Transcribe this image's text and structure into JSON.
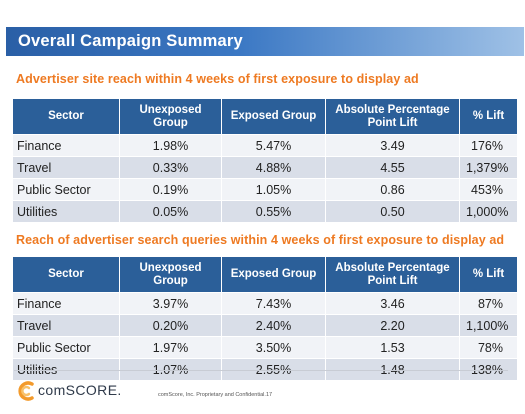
{
  "title": "Overall Campaign Summary",
  "table1": {
    "heading": "Advertiser site reach within 4 weeks of first exposure to display ad",
    "headers": {
      "sector": "Sector",
      "unexposed": "Unexposed Group",
      "exposed": "Exposed Group",
      "absolute": "Absolute Percentage Point Lift",
      "lift": "% Lift"
    },
    "rows": [
      {
        "sector": "Finance",
        "unexposed": "1.98%",
        "exposed": "5.47%",
        "absolute": "3.49",
        "lift": "176%"
      },
      {
        "sector": "Travel",
        "unexposed": "0.33%",
        "exposed": "4.88%",
        "absolute": "4.55",
        "lift": "1,379%"
      },
      {
        "sector": "Public Sector",
        "unexposed": "0.19%",
        "exposed": "1.05%",
        "absolute": "0.86",
        "lift": "453%"
      },
      {
        "sector": "Utilities",
        "unexposed": "0.05%",
        "exposed": "0.55%",
        "absolute": "0.50",
        "lift": "1,000%"
      }
    ]
  },
  "table2": {
    "heading": "Reach of advertiser search queries within 4 weeks of first exposure to display ad",
    "headers": {
      "sector": "Sector",
      "unexposed": "Unexposed Group",
      "exposed": "Exposed Group",
      "absolute": "Absolute Percentage Point Lift",
      "lift": "% Lift"
    },
    "rows": [
      {
        "sector": "Finance",
        "unexposed": "3.97%",
        "exposed": "7.43%",
        "absolute": "3.46",
        "lift": "87%"
      },
      {
        "sector": "Travel",
        "unexposed": "0.20%",
        "exposed": "2.40%",
        "absolute": "2.20",
        "lift": "1,100%"
      },
      {
        "sector": "Public Sector",
        "unexposed": "1.97%",
        "exposed": "3.50%",
        "absolute": "1.53",
        "lift": "78%"
      },
      {
        "sector": "Utilities",
        "unexposed": "1.07%",
        "exposed": "2.55%",
        "absolute": "1.48",
        "lift": "138%"
      }
    ]
  },
  "footer": {
    "logo_text": "comSCORE.",
    "note": "comScore, Inc. Proprietary and Confidential.",
    "page_number": "17"
  },
  "colors": {
    "title_bar": "#2a5fa6",
    "heading_orange": "#ee7a22",
    "table_header": "#2b5f99",
    "row_light": "#f1f3f7",
    "row_dark": "#d9dee8",
    "logo_orange": "#f39a2b"
  }
}
